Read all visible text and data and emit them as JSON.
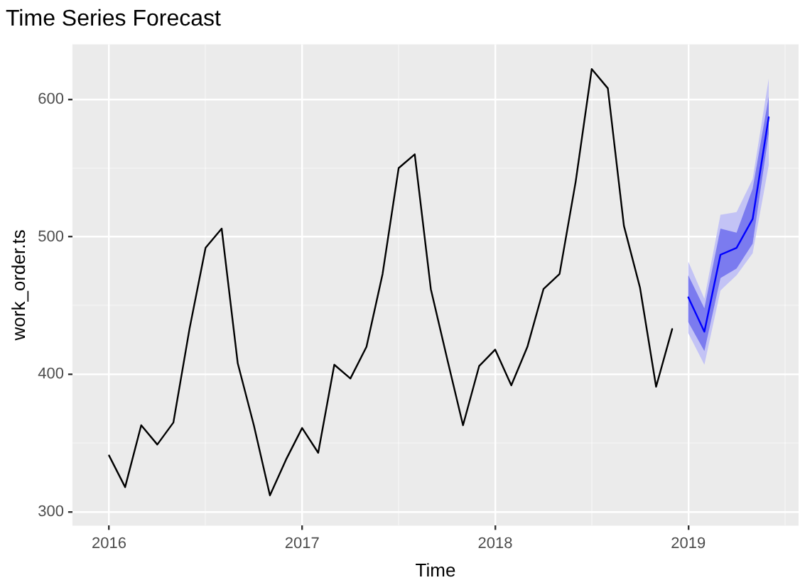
{
  "chart_data": {
    "type": "line",
    "title": "Time Series Forecast",
    "xlabel": "Time",
    "ylabel": "work_order.ts",
    "series": [
      {
        "color": "#000000",
        "x": [
          "2016-01",
          "2016-02",
          "2016-03",
          "2016-04",
          "2016-05",
          "2016-06",
          "2016-07",
          "2016-08",
          "2016-09",
          "2016-10",
          "2016-11",
          "2016-12",
          "2017-01",
          "2017-02",
          "2017-03",
          "2017-04",
          "2017-05",
          "2017-06",
          "2017-07",
          "2017-08",
          "2017-09",
          "2017-10",
          "2017-11",
          "2017-12",
          "2018-01",
          "2018-02",
          "2018-03",
          "2018-04",
          "2018-05",
          "2018-06",
          "2018-07",
          "2018-08",
          "2018-09",
          "2018-10",
          "2018-11",
          "2018-12"
        ],
        "values": [
          341,
          318,
          363,
          349,
          365,
          433,
          492,
          506,
          408,
          363,
          312,
          338,
          361,
          343,
          407,
          397,
          420,
          473,
          550,
          560,
          462,
          412,
          363,
          406,
          418,
          392,
          420,
          462,
          473,
          540,
          622,
          608,
          508,
          463,
          391,
          433
        ]
      },
      {
        "color": "#c3c3f5",
        "x": [
          "2019-01",
          "2019-02",
          "2019-03",
          "2019-04",
          "2019-05",
          "2019-06"
        ],
        "values": [
          null,
          null,
          null,
          null,
          null,
          null
        ],
        "lower": [
          430,
          407,
          461,
          472,
          488,
          552
        ],
        "upper": [
          482,
          455,
          516,
          518,
          542,
          615
        ]
      },
      {
        "color": "#7b7bef",
        "x": [
          "2019-01",
          "2019-02",
          "2019-03",
          "2019-04",
          "2019-05",
          "2019-06"
        ],
        "values": [
          null,
          null,
          null,
          null,
          null,
          null
        ],
        "lower": [
          438,
          417,
          470,
          477,
          495,
          575
        ],
        "upper": [
          472,
          448,
          506,
          503,
          535,
          602
        ]
      },
      {
        "color": "#0000ff",
        "x": [
          "2019-01",
          "2019-02",
          "2019-03",
          "2019-04",
          "2019-05",
          "2019-06"
        ],
        "values": [
          456,
          431,
          487,
          492,
          513,
          587
        ]
      }
    ],
    "xlim": [
      "2015-10-23",
      "2019-07-27"
    ],
    "xticks": [
      {
        "value": "2016",
        "label": "2016"
      },
      {
        "value": "2017",
        "label": "2017"
      },
      {
        "value": "2018",
        "label": "2018"
      },
      {
        "value": "2019",
        "label": "2019"
      },
      {
        "value": "2016-07",
        "label": null
      },
      {
        "value": "2017-07",
        "label": null
      },
      {
        "value": "2018-07",
        "label": null
      },
      {
        "value": "2019-07",
        "label": null
      }
    ],
    "ylim": [
      290,
      640
    ],
    "yticks": [
      300,
      400,
      500,
      600,
      {
        "value": 350,
        "label": null
      },
      {
        "value": 450,
        "label": null
      },
      {
        "value": 550,
        "label": null
      }
    ],
    "grid": true,
    "legend": false,
    "marker": "none",
    "line_style": "solid"
  }
}
